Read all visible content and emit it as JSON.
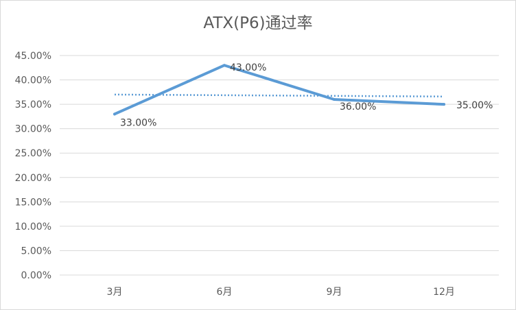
{
  "chart_data": {
    "type": "line",
    "title": "ATX(P6)通过率",
    "categories": [
      "3月",
      "6月",
      "9月",
      "12月"
    ],
    "series": [
      {
        "values": [
          33,
          43,
          36,
          35
        ],
        "labels": [
          "33.00%",
          "43.00%",
          "36.00%",
          "35.00%"
        ],
        "color": "#5b9bd5",
        "style": "solid"
      }
    ],
    "trendline": {
      "type": "linear",
      "values": [
        37.0,
        36.6
      ],
      "color": "#5b9bd5",
      "style": "dotted"
    },
    "ylim": [
      0,
      45
    ],
    "ytick_step": 5,
    "ytick_labels": [
      "0.00%",
      "5.00%",
      "10.00%",
      "15.00%",
      "20.00%",
      "25.00%",
      "30.00%",
      "35.00%",
      "40.00%",
      "45.00%"
    ],
    "grid": true,
    "legend": "none",
    "colors": {
      "grid": "#d9d9d9",
      "text": "#595959",
      "line": "#5b9bd5"
    }
  }
}
